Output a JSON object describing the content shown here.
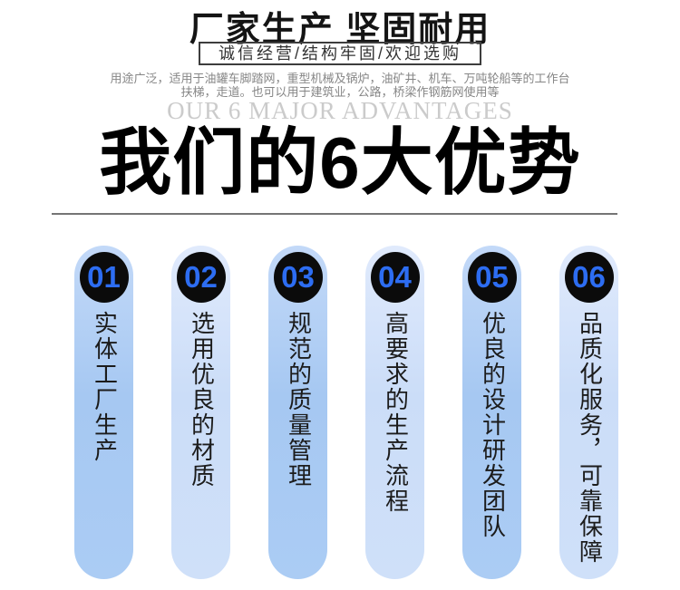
{
  "header": {
    "title": "厂家生产 坚固耐用",
    "subtitle": "诚信经营/结构牢固/欢迎选购",
    "description_line1": "用途广泛，适用于油罐车脚踏网，重型机械及锅炉，油矿井、机车、万吨轮船等的工作台",
    "description_line2": "扶梯，走道。也可以用于建筑业，公路，桥梁作钢筋网使用等"
  },
  "section": {
    "eyebrow": "OUR 6 MAJOR ADVANTAGES",
    "title": "我们的6大优势"
  },
  "advantages": [
    {
      "number": "01",
      "text": "实体工厂生产",
      "tone": "dark"
    },
    {
      "number": "02",
      "text": "选用优良的材质",
      "tone": "light"
    },
    {
      "number": "03",
      "text": "规范的质量管理",
      "tone": "dark"
    },
    {
      "number": "04",
      "text": "高要求的生产流程",
      "tone": "light"
    },
    {
      "number": "05",
      "text": "优良的设计研发团队",
      "tone": "dark"
    },
    {
      "number": "06",
      "text": "品质化服务，可靠保障",
      "tone": "light"
    }
  ],
  "colors": {
    "number_blue": "#2d6df2",
    "badge_black": "#0b0b0b",
    "pill_dark_top": "#c3d9f8",
    "pill_dark_bottom": "#a6c8f2",
    "pill_light_top": "#e0eafc",
    "pill_light_bottom": "#cbddf8",
    "divider_gray": "#757575",
    "eyebrow_gray": "#cbcbcb",
    "title_black": "#141414"
  }
}
